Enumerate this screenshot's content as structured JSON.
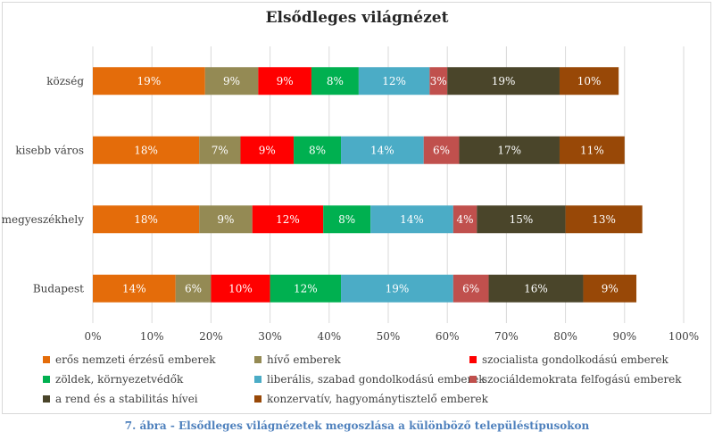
{
  "caption": "7. ábra - Elsődleges világnézetek megoszlása a különböző településtípusokon",
  "chart_data": {
    "type": "bar",
    "orientation": "horizontal",
    "stacked": true,
    "title": "Elsődleges világnézet",
    "xlabel": "",
    "ylabel": "",
    "xlim": [
      0,
      100
    ],
    "x_ticks": [
      "0%",
      "10%",
      "20%",
      "30%",
      "40%",
      "50%",
      "60%",
      "70%",
      "80%",
      "90%",
      "100%"
    ],
    "grid": "vertical",
    "legend_position": "bottom",
    "categories": [
      "község",
      "kisebb város",
      "megyeszékhely",
      "Budapest"
    ],
    "series": [
      {
        "name": "erős nemzeti érzésű emberek",
        "color": "#e46c0a",
        "values": [
          19,
          18,
          18,
          14
        ],
        "labels": [
          "19%",
          "18%",
          "18%",
          "14%"
        ]
      },
      {
        "name": "hívő emberek",
        "color": "#948a54",
        "values": [
          9,
          7,
          9,
          6
        ],
        "labels": [
          "9%",
          "7%",
          "9%",
          "6%"
        ]
      },
      {
        "name": "szocialista gondolkodású emberek",
        "color": "#ff0000",
        "values": [
          9,
          9,
          12,
          10
        ],
        "labels": [
          "9%",
          "9%",
          "12%",
          "10%"
        ]
      },
      {
        "name": "zöldek, környezetvédők",
        "color": "#00b050",
        "values": [
          8,
          8,
          8,
          12
        ],
        "labels": [
          "8%",
          "8%",
          "8%",
          "12%"
        ]
      },
      {
        "name": "liberális, szabad gondolkodású emberek",
        "color": "#4bacc6",
        "values": [
          12,
          14,
          14,
          19
        ],
        "labels": [
          "12%",
          "14%",
          "14%",
          "19%"
        ]
      },
      {
        "name": "szociáldemokrata felfogású emberek",
        "color": "#c0504d",
        "values": [
          3,
          6,
          4,
          6
        ],
        "labels": [
          "3%",
          "6%",
          "4%",
          "6%"
        ]
      },
      {
        "name": "a rend és a stabilitás hívei",
        "color": "#4a452a",
        "values": [
          19,
          17,
          15,
          16
        ],
        "labels": [
          "19%",
          "17%",
          "15%",
          "16%"
        ]
      },
      {
        "name": "konzervatív, hagyománytisztelő emberek",
        "color": "#984807",
        "values": [
          10,
          11,
          13,
          9
        ],
        "labels": [
          "10%",
          "11%",
          "13%",
          "9%"
        ]
      }
    ]
  }
}
